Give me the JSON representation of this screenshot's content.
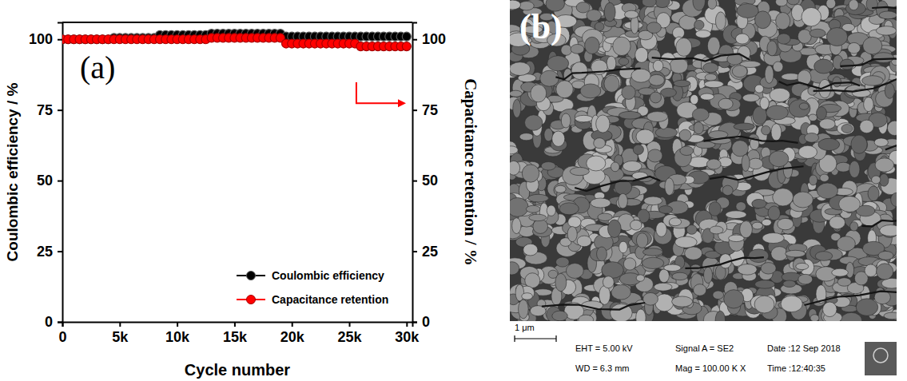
{
  "chart_data": {
    "type": "line",
    "title": "(a)",
    "x_label": "Cycle number",
    "y_label": "Coulombic efficiency / %",
    "y2_label": "Capacitance retention / %",
    "x": [
      0,
      500,
      1000,
      1500,
      2000,
      2500,
      3000,
      3500,
      4000,
      4500,
      5000,
      5500,
      6000,
      6500,
      7000,
      7500,
      8000,
      8500,
      9000,
      9500,
      10000,
      10500,
      11000,
      11500,
      12000,
      12500,
      13000,
      13500,
      14000,
      14500,
      15000,
      15500,
      16000,
      16500,
      17000,
      17500,
      18000,
      18500,
      19000,
      19500,
      20000,
      20500,
      21000,
      21500,
      22000,
      22500,
      23000,
      23500,
      24000,
      24500,
      25000,
      25500,
      26000,
      26500,
      27000,
      27500,
      28000,
      28500,
      29000,
      29500,
      30000
    ],
    "series": [
      {
        "name": "Coulombic efficiency",
        "color": "#000000",
        "marker": "circle",
        "line_style": "solid",
        "values": [
          100,
          100,
          100,
          100,
          100,
          100,
          100,
          100,
          100,
          100.5,
          100.5,
          100.5,
          100.5,
          100.5,
          100.5,
          100.5,
          100.5,
          101.5,
          101.5,
          101.5,
          101.5,
          101.5,
          101.5,
          101.5,
          101.5,
          101.5,
          102,
          102,
          102,
          102,
          102,
          102,
          102,
          102,
          102,
          102,
          102,
          102,
          102,
          101,
          101,
          101,
          101,
          101,
          101,
          101,
          101,
          101,
          101,
          101,
          101,
          101,
          101,
          101,
          101,
          101,
          101,
          101,
          101,
          101,
          101
        ]
      },
      {
        "name": "Capacitance retention",
        "color": "#ff0000",
        "marker": "circle",
        "line_style": "solid",
        "axis": "y2",
        "values": [
          100,
          100,
          100,
          100,
          100,
          100,
          100,
          100,
          100,
          100,
          100,
          100,
          100,
          100,
          100,
          100,
          100,
          100,
          100,
          100,
          100,
          100,
          100,
          100,
          100,
          100,
          100.5,
          100.5,
          100.5,
          100.5,
          100.5,
          100.5,
          100.5,
          100.5,
          100.5,
          100.5,
          100.5,
          100.5,
          100.5,
          98.5,
          98.5,
          98.5,
          98.5,
          98.5,
          98.5,
          98.5,
          98.5,
          98.5,
          98.5,
          98.5,
          98.5,
          98.5,
          97.5,
          97.5,
          97.5,
          97.5,
          97.5,
          97.5,
          97.5,
          97.5,
          97.5
        ]
      }
    ],
    "xlim": [
      0,
      30500
    ],
    "xticks": [
      0,
      {
        "value": 5000,
        "label": "5k"
      },
      {
        "value": 10000,
        "label": "10k"
      },
      {
        "value": 15000,
        "label": "15k"
      },
      {
        "value": 20000,
        "label": "20k"
      },
      {
        "value": 25000,
        "label": "25k"
      },
      {
        "value": 30000,
        "label": "30k"
      }
    ],
    "ylim": [
      0,
      106
    ],
    "yticks": [
      0,
      25,
      50,
      75,
      100
    ],
    "y2lim": [
      0,
      106
    ],
    "y2ticks": [
      0,
      25,
      50,
      75,
      100
    ],
    "grid": false,
    "legend": "lower right"
  },
  "sem_image": {
    "panel_label": "(b)",
    "scale_bar": "1 μm",
    "info": [
      "EHT = 5.00 kV",
      "WD = 6.3 mm",
      "Signal A = SE2",
      "Mag = 100.00 K X",
      "Date :12 Sep 2018",
      "Time :12:40:35"
    ]
  }
}
